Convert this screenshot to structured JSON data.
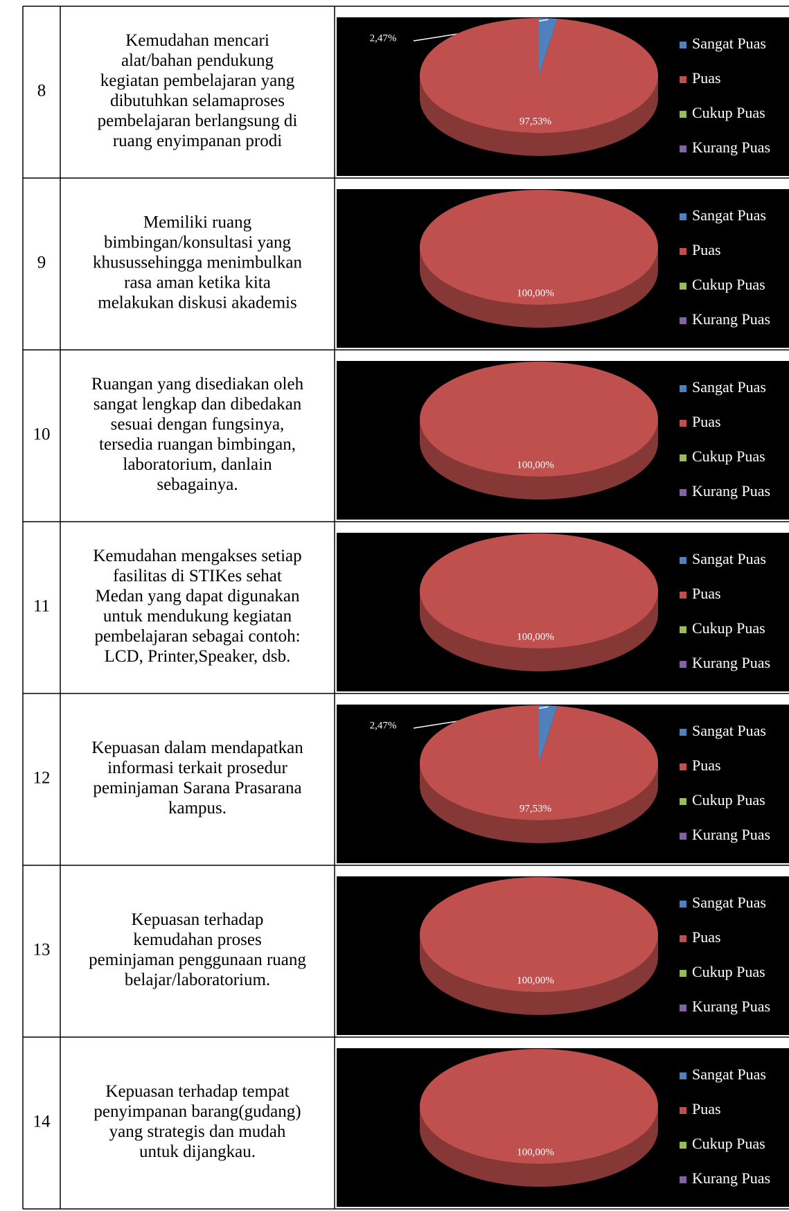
{
  "table": {
    "rows": [
      {
        "no": "8",
        "lines": [
          "Kemudahan mencari",
          "alat/bahan pendukung",
          "kegiatan pembelajaran yang",
          "dibutuhkan selamaproses",
          "pembelajaran berlangsung di",
          "ruang enyimpanan prodi"
        ]
      },
      {
        "no": "9",
        "lines": [
          "Memiliki ruang",
          "bimbingan/konsultasi yang",
          "khusussehingga menimbulkan",
          "rasa aman ketika kita",
          "melakukan diskusi akademis"
        ]
      },
      {
        "no": "10",
        "lines": [
          "Ruangan yang disediakan oleh",
          "sangat lengkap dan dibedakan",
          "sesuai dengan fungsinya,",
          "tersedia ruangan bimbingan,",
          "laboratorium, danlain",
          "sebagainya."
        ]
      },
      {
        "no": "11",
        "lines": [
          "Kemudahan mengakses setiap",
          "fasilitas di STIKes sehat",
          "Medan yang dapat digunakan",
          "untuk mendukung kegiatan",
          "pembelajaran sebagai contoh:",
          "LCD, Printer,Speaker, dsb."
        ]
      },
      {
        "no": "12",
        "lines": [
          "Kepuasan dalam mendapatkan",
          "informasi terkait prosedur",
          "peminjaman Sarana Prasarana",
          "kampus."
        ]
      },
      {
        "no": "13",
        "lines": [
          "Kepuasan terhadap",
          "kemudahan proses",
          "peminjaman penggunaan ruang",
          "belajar/laboratorium."
        ]
      },
      {
        "no": "14",
        "lines": [
          "Kepuasan terhadap tempat",
          "penyimpanan barang(gudang)",
          "yang strategis dan mudah",
          "untuk dijangkau."
        ]
      }
    ]
  },
  "chart_data": [
    {
      "type": "pie",
      "categories": [
        "Sangat Puas",
        "Puas",
        "Cukup Puas",
        "Kurang Puas"
      ],
      "values": [
        2.47,
        97.53,
        0,
        0
      ],
      "value_labels": [
        "2,47%",
        "97,53%",
        null,
        null
      ],
      "colors": [
        "#4f81bd",
        "#c0504d",
        "#9bbb59",
        "#8064a2"
      ]
    },
    {
      "type": "pie",
      "categories": [
        "Sangat Puas",
        "Puas",
        "Cukup Puas",
        "Kurang Puas"
      ],
      "values": [
        0,
        100,
        0,
        0
      ],
      "value_labels": [
        null,
        "100,00%",
        null,
        null
      ],
      "colors": [
        "#4f81bd",
        "#c0504d",
        "#9bbb59",
        "#8064a2"
      ]
    },
    {
      "type": "pie",
      "categories": [
        "Sangat Puas",
        "Puas",
        "Cukup Puas",
        "Kurang Puas"
      ],
      "values": [
        0,
        100,
        0,
        0
      ],
      "value_labels": [
        null,
        "100,00%",
        null,
        null
      ],
      "colors": [
        "#4f81bd",
        "#c0504d",
        "#9bbb59",
        "#8064a2"
      ]
    },
    {
      "type": "pie",
      "categories": [
        "Sangat Puas",
        "Puas",
        "Cukup Puas",
        "Kurang Puas"
      ],
      "values": [
        0,
        100,
        0,
        0
      ],
      "value_labels": [
        null,
        "100,00%",
        null,
        null
      ],
      "colors": [
        "#4f81bd",
        "#c0504d",
        "#9bbb59",
        "#8064a2"
      ]
    },
    {
      "type": "pie",
      "categories": [
        "Sangat Puas",
        "Puas",
        "Cukup Puas",
        "Kurang Puas"
      ],
      "values": [
        2.47,
        97.53,
        0,
        0
      ],
      "value_labels": [
        "2,47%",
        "97,53%",
        null,
        null
      ],
      "colors": [
        "#4f81bd",
        "#c0504d",
        "#9bbb59",
        "#8064a2"
      ]
    },
    {
      "type": "pie",
      "categories": [
        "Sangat Puas",
        "Puas",
        "Cukup Puas",
        "Kurang Puas"
      ],
      "values": [
        0,
        100,
        0,
        0
      ],
      "value_labels": [
        null,
        "100,00%",
        null,
        null
      ],
      "colors": [
        "#4f81bd",
        "#c0504d",
        "#9bbb59",
        "#8064a2"
      ]
    },
    {
      "type": "pie",
      "categories": [
        "Sangat Puas",
        "Puas",
        "Cukup Puas",
        "Kurang Puas"
      ],
      "values": [
        0,
        100,
        0,
        0
      ],
      "value_labels": [
        null,
        "100,00%",
        null,
        null
      ],
      "colors": [
        "#4f81bd",
        "#c0504d",
        "#9bbb59",
        "#8064a2"
      ]
    }
  ]
}
